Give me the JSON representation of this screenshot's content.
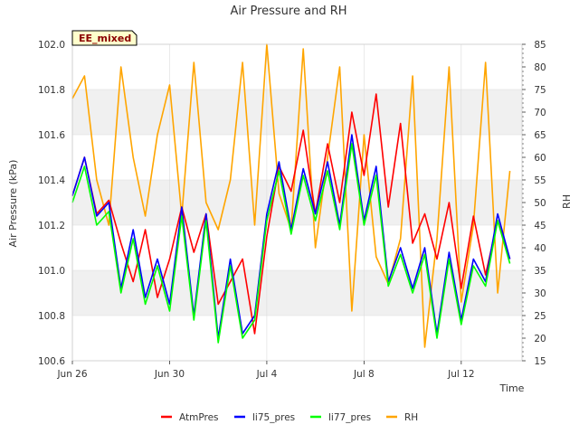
{
  "chart_data": {
    "type": "line",
    "title": "Air Pressure and RH",
    "annotation": "EE_mixed",
    "xlabel": "Time",
    "ylabel": "Air Pressure (kPa)",
    "y2label": "RH",
    "xlim": [
      "2023-06-26",
      "2023-07-14T12:00"
    ],
    "ylim": [
      100.6,
      102.0
    ],
    "y2lim": [
      15,
      85
    ],
    "x_ticks": [
      {
        "date": "2023-06-26",
        "label": "Jun 26"
      },
      {
        "date": "2023-06-30",
        "label": "Jun 30"
      },
      {
        "date": "2023-07-04",
        "label": "Jul 4"
      },
      {
        "date": "2023-07-08",
        "label": "Jul 8"
      },
      {
        "date": "2023-07-12",
        "label": "Jul 12"
      }
    ],
    "y_ticks": [
      "100.6",
      "100.8",
      "101.0",
      "101.2",
      "101.4",
      "101.6",
      "101.8",
      "102.0"
    ],
    "y2_ticks": [
      "15",
      "20",
      "25",
      "30",
      "35",
      "40",
      "45",
      "50",
      "55",
      "60",
      "65",
      "70",
      "75",
      "80",
      "85"
    ],
    "grid": true,
    "legend_position": "bottom",
    "series": [
      {
        "name": "AtmPres",
        "axis": "left",
        "color": "#ff0000",
        "x": [
          "2023-06-26T00:00",
          "2023-06-26T12:00",
          "2023-06-27T00:00",
          "2023-06-27T12:00",
          "2023-06-28T00:00",
          "2023-06-28T12:00",
          "2023-06-29T00:00",
          "2023-06-29T12:00",
          "2023-06-30T00:00",
          "2023-06-30T12:00",
          "2023-07-01T00:00",
          "2023-07-01T12:00",
          "2023-07-02T00:00",
          "2023-07-02T12:00",
          "2023-07-03T00:00",
          "2023-07-03T12:00",
          "2023-07-04T00:00",
          "2023-07-04T12:00",
          "2023-07-05T00:00",
          "2023-07-05T12:00",
          "2023-07-06T00:00",
          "2023-07-06T12:00",
          "2023-07-07T00:00",
          "2023-07-07T12:00",
          "2023-07-08T00:00",
          "2023-07-08T12:00",
          "2023-07-09T00:00",
          "2023-07-09T12:00",
          "2023-07-10T00:00",
          "2023-07-10T12:00",
          "2023-07-11T00:00",
          "2023-07-11T12:00",
          "2023-07-12T00:00",
          "2023-07-12T12:00",
          "2023-07-13T00:00",
          "2023-07-13T12:00",
          "2023-07-14T00:00"
        ],
        "values": [
          101.33,
          101.5,
          101.25,
          101.31,
          101.12,
          100.95,
          101.18,
          100.88,
          101.05,
          101.28,
          101.08,
          101.25,
          100.85,
          100.95,
          101.05,
          100.72,
          101.15,
          101.46,
          101.35,
          101.62,
          101.25,
          101.56,
          101.3,
          101.7,
          101.42,
          101.78,
          101.28,
          101.65,
          101.12,
          101.25,
          101.05,
          101.3,
          100.92,
          101.24,
          100.98,
          101.22,
          101.05
        ]
      },
      {
        "name": "li75_pres",
        "axis": "left",
        "color": "#0000ff",
        "x": [
          "2023-06-26T00:00",
          "2023-06-26T12:00",
          "2023-06-27T00:00",
          "2023-06-27T12:00",
          "2023-06-28T00:00",
          "2023-06-28T12:00",
          "2023-06-29T00:00",
          "2023-06-29T12:00",
          "2023-06-30T00:00",
          "2023-06-30T12:00",
          "2023-07-01T00:00",
          "2023-07-01T12:00",
          "2023-07-02T00:00",
          "2023-07-02T12:00",
          "2023-07-03T00:00",
          "2023-07-03T12:00",
          "2023-07-04T00:00",
          "2023-07-04T12:00",
          "2023-07-05T00:00",
          "2023-07-05T12:00",
          "2023-07-06T00:00",
          "2023-07-06T12:00",
          "2023-07-07T00:00",
          "2023-07-07T12:00",
          "2023-07-08T00:00",
          "2023-07-08T12:00",
          "2023-07-09T00:00",
          "2023-07-09T12:00",
          "2023-07-10T00:00",
          "2023-07-10T12:00",
          "2023-07-11T00:00",
          "2023-07-11T12:00",
          "2023-07-12T00:00",
          "2023-07-12T12:00",
          "2023-07-13T00:00",
          "2023-07-13T12:00",
          "2023-07-14T00:00"
        ],
        "values": [
          101.33,
          101.5,
          101.24,
          101.3,
          100.92,
          101.18,
          100.88,
          101.05,
          100.85,
          101.28,
          100.8,
          101.25,
          100.7,
          101.05,
          100.72,
          100.8,
          101.25,
          101.48,
          101.18,
          101.45,
          101.25,
          101.48,
          101.2,
          101.6,
          101.22,
          101.46,
          100.95,
          101.1,
          100.92,
          101.1,
          100.72,
          101.08,
          100.78,
          101.05,
          100.95,
          101.25,
          101.05
        ]
      },
      {
        "name": "li77_pres",
        "axis": "left",
        "color": "#00ff00",
        "x": [
          "2023-06-26T00:00",
          "2023-06-26T12:00",
          "2023-06-27T00:00",
          "2023-06-27T12:00",
          "2023-06-28T00:00",
          "2023-06-28T12:00",
          "2023-06-29T00:00",
          "2023-06-29T12:00",
          "2023-06-30T00:00",
          "2023-06-30T12:00",
          "2023-07-01T00:00",
          "2023-07-01T12:00",
          "2023-07-02T00:00",
          "2023-07-02T12:00",
          "2023-07-03T00:00",
          "2023-07-03T12:00",
          "2023-07-04T00:00",
          "2023-07-04T12:00",
          "2023-07-05T00:00",
          "2023-07-05T12:00",
          "2023-07-06T00:00",
          "2023-07-06T12:00",
          "2023-07-07T00:00",
          "2023-07-07T12:00",
          "2023-07-08T00:00",
          "2023-07-08T12:00",
          "2023-07-09T00:00",
          "2023-07-09T12:00",
          "2023-07-10T00:00",
          "2023-07-10T12:00",
          "2023-07-11T00:00",
          "2023-07-11T12:00",
          "2023-07-12T00:00",
          "2023-07-12T12:00",
          "2023-07-13T00:00",
          "2023-07-13T12:00",
          "2023-07-14T00:00"
        ],
        "values": [
          101.3,
          101.46,
          101.2,
          101.26,
          100.9,
          101.14,
          100.85,
          101.02,
          100.82,
          101.24,
          100.78,
          101.22,
          100.68,
          101.02,
          100.7,
          100.78,
          101.22,
          101.44,
          101.16,
          101.42,
          101.22,
          101.44,
          101.18,
          101.56,
          101.2,
          101.42,
          100.93,
          101.07,
          100.9,
          101.07,
          100.7,
          101.05,
          100.76,
          101.02,
          100.93,
          101.22,
          101.03
        ]
      },
      {
        "name": "RH",
        "axis": "right",
        "color": "#ffa500",
        "x": [
          "2023-06-26T00:00",
          "2023-06-26T12:00",
          "2023-06-27T00:00",
          "2023-06-27T12:00",
          "2023-06-28T00:00",
          "2023-06-28T12:00",
          "2023-06-29T00:00",
          "2023-06-29T12:00",
          "2023-06-30T00:00",
          "2023-06-30T12:00",
          "2023-07-01T00:00",
          "2023-07-01T12:00",
          "2023-07-02T00:00",
          "2023-07-02T12:00",
          "2023-07-03T00:00",
          "2023-07-03T12:00",
          "2023-07-04T00:00",
          "2023-07-04T12:00",
          "2023-07-05T00:00",
          "2023-07-05T12:00",
          "2023-07-06T00:00",
          "2023-07-06T12:00",
          "2023-07-07T00:00",
          "2023-07-07T12:00",
          "2023-07-08T00:00",
          "2023-07-08T12:00",
          "2023-07-09T00:00",
          "2023-07-09T12:00",
          "2023-07-10T00:00",
          "2023-07-10T12:00",
          "2023-07-11T00:00",
          "2023-07-11T12:00",
          "2023-07-12T00:00",
          "2023-07-12T12:00",
          "2023-07-13T00:00",
          "2023-07-13T12:00",
          "2023-07-14T00:00"
        ],
        "values": [
          73,
          78,
          55,
          45,
          80,
          60,
          47,
          65,
          76,
          47,
          81,
          50,
          44,
          55,
          81,
          45,
          85,
          52,
          44,
          84,
          40,
          60,
          80,
          26,
          65,
          38,
          32,
          42,
          78,
          18,
          42,
          80,
          28,
          45,
          81,
          30,
          57
        ]
      }
    ]
  }
}
